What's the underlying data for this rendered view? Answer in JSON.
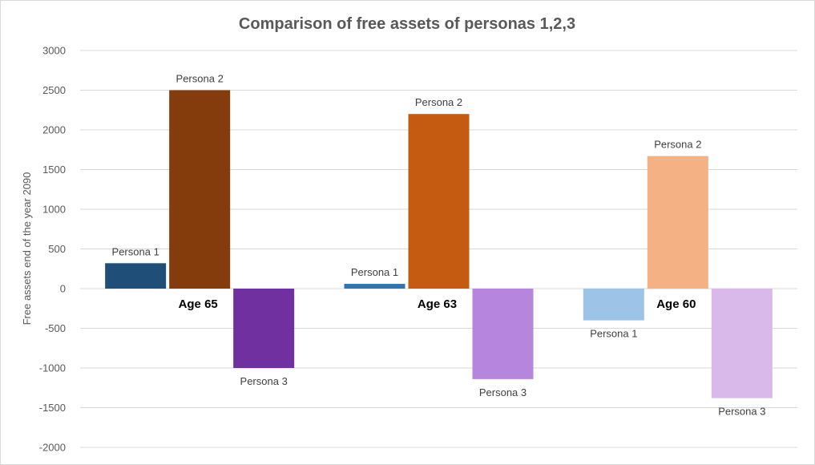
{
  "chart_data": {
    "type": "bar",
    "title": "Comparison of free assets of personas 1,2,3",
    "ylabel": "Free assets end of the year 2090",
    "xlabel": "",
    "ylim": [
      -2000,
      3000
    ],
    "ytick_step": 500,
    "yticks": [
      "3000",
      "2500",
      "2000",
      "1500",
      "1000",
      "500",
      "0",
      "-500",
      "-1000",
      "-1500",
      "-2000"
    ],
    "grid": true,
    "legend": "none",
    "categories": [
      "Age 65",
      "Age 63",
      "Age 60"
    ],
    "series": [
      {
        "name": "Persona 1",
        "values": [
          320,
          60,
          -400
        ],
        "colors": [
          "#1f4e79",
          "#2e75b6",
          "#9dc3e6"
        ]
      },
      {
        "name": "Persona 2",
        "values": [
          2500,
          2200,
          1670
        ],
        "colors": [
          "#843c0c",
          "#c55a11",
          "#f4b183"
        ]
      },
      {
        "name": "Persona 3",
        "values": [
          -1000,
          -1140,
          -1380
        ],
        "colors": [
          "#7030a0",
          "#b685de",
          "#d9b8ea"
        ]
      }
    ]
  }
}
